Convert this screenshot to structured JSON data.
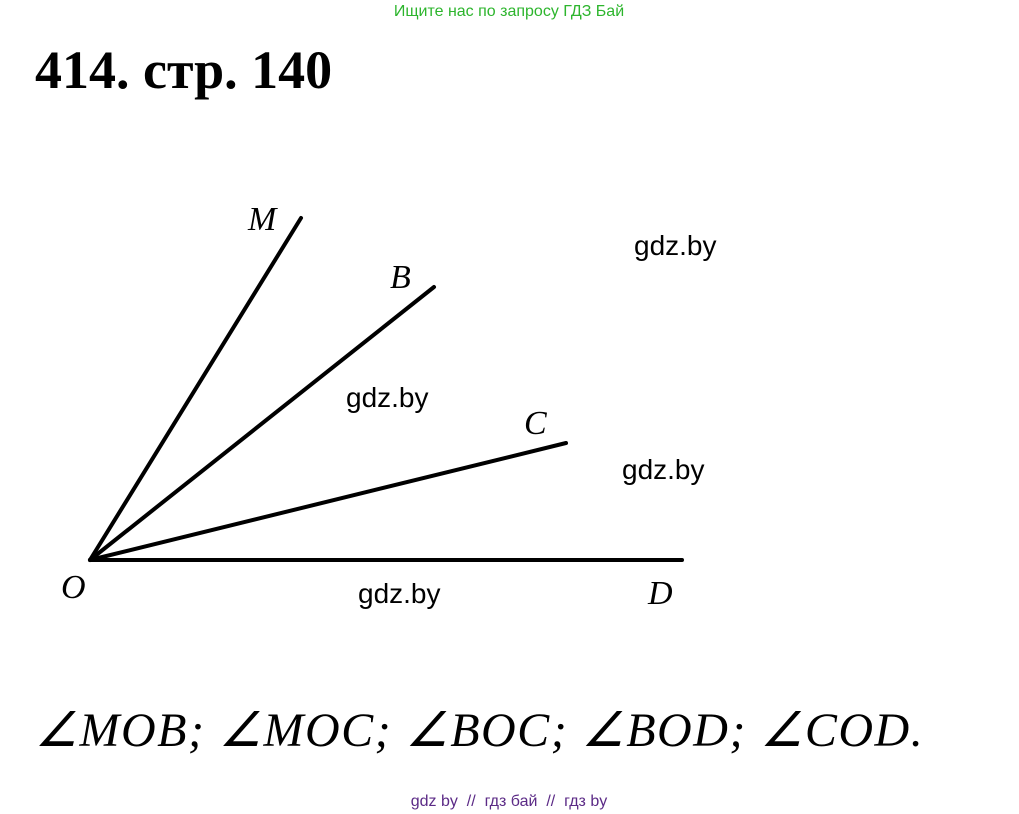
{
  "header": {
    "notice": "Ищите нас по запросу ГДЗ Бай",
    "title": "414. стр. 140"
  },
  "figure": {
    "points": [
      "M",
      "B",
      "C",
      "O",
      "D"
    ],
    "watermarks": [
      "gdz.by",
      "gdz.by",
      "gdz.by",
      "gdz.by"
    ]
  },
  "answer": "∠MOB; ∠MOC; ∠BOC; ∠BOD; ∠COD.",
  "footer": "gdz by  //  гдз бай  //  гдз by"
}
